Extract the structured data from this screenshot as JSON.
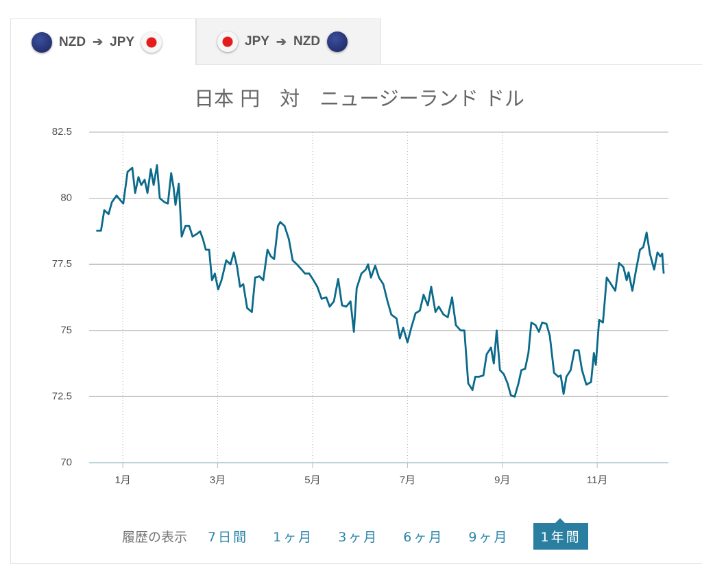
{
  "tabs": [
    {
      "from": "NZD",
      "to": "JPY"
    },
    {
      "from": "JPY",
      "to": "NZD"
    }
  ],
  "chart_data": {
    "type": "line",
    "title": "日本 円　対　ニュージーランド ドル",
    "x": [
      0.44,
      0.54,
      0.61,
      0.7,
      0.77,
      0.87,
      0.96,
      1.01,
      1.1,
      1.2,
      1.26,
      1.33,
      1.39,
      1.46,
      1.52,
      1.59,
      1.65,
      1.72,
      1.78,
      1.88,
      1.95,
      2.02,
      2.07,
      2.11,
      2.18,
      2.24,
      2.32,
      2.4,
      2.47,
      2.56,
      2.63,
      2.69,
      2.75,
      2.82,
      2.88,
      2.94,
      3.01,
      3.08,
      3.18,
      3.27,
      3.34,
      3.41,
      3.47,
      3.54,
      3.62,
      3.72,
      3.79,
      3.88,
      3.96,
      4.05,
      4.12,
      4.19,
      4.27,
      4.32,
      4.41,
      4.5,
      4.58,
      4.67,
      4.77,
      4.84,
      4.93,
      5.02,
      5.1,
      5.19,
      5.29,
      5.36,
      5.45,
      5.54,
      5.62,
      5.71,
      5.8,
      5.87,
      5.93,
      6.03,
      6.12,
      6.17,
      6.23,
      6.32,
      6.4,
      6.49,
      6.58,
      6.66,
      6.77,
      6.84,
      6.91,
      7.0,
      7.08,
      7.17,
      7.26,
      7.34,
      7.43,
      7.5,
      7.59,
      7.66,
      7.76,
      7.85,
      7.94,
      8.02,
      8.12,
      8.2,
      8.28,
      8.37,
      8.43,
      8.51,
      8.6,
      8.67,
      8.76,
      8.82,
      8.88,
      8.95,
      9.03,
      9.11,
      9.18,
      9.26,
      9.34,
      9.4,
      9.48,
      9.55,
      9.61,
      9.7,
      9.77,
      9.84,
      9.93,
      10.0,
      10.09,
      10.18,
      10.23,
      10.29,
      10.35,
      10.44,
      10.52,
      10.61,
      10.68,
      10.77,
      10.87,
      10.93,
      10.97,
      11.04,
      11.12,
      11.2,
      11.29,
      11.38,
      11.46,
      11.55,
      11.62,
      11.66,
      11.74,
      11.82,
      11.9,
      11.97,
      12.04,
      12.11,
      12.2,
      12.27,
      12.33,
      12.37,
      12.4
    ],
    "series": [
      {
        "name": "JPY/NZD",
        "color": "#0b6a8a",
        "values": [
          78.77,
          78.77,
          79.55,
          79.4,
          79.85,
          80.1,
          79.9,
          79.8,
          81.0,
          81.15,
          80.2,
          80.8,
          80.5,
          80.7,
          80.2,
          81.1,
          80.5,
          81.25,
          80.0,
          79.85,
          79.8,
          80.95,
          80.4,
          79.75,
          80.55,
          78.55,
          78.95,
          78.95,
          78.55,
          78.65,
          78.75,
          78.45,
          78.05,
          78.05,
          76.9,
          77.15,
          76.55,
          76.9,
          77.65,
          77.5,
          77.95,
          77.4,
          76.65,
          76.75,
          75.85,
          75.7,
          77.0,
          77.05,
          76.9,
          78.05,
          77.8,
          77.7,
          78.95,
          79.1,
          78.95,
          78.45,
          77.65,
          77.5,
          77.3,
          77.15,
          77.15,
          76.9,
          76.65,
          76.2,
          76.25,
          75.9,
          76.1,
          76.95,
          75.95,
          75.9,
          76.1,
          74.95,
          76.6,
          77.15,
          77.3,
          77.5,
          77.0,
          77.45,
          77.0,
          76.75,
          76.1,
          75.6,
          75.45,
          74.7,
          75.1,
          74.55,
          75.1,
          75.65,
          75.75,
          76.35,
          75.95,
          76.65,
          75.7,
          75.9,
          75.6,
          75.5,
          76.25,
          75.2,
          75.0,
          75.0,
          73.0,
          72.75,
          73.25,
          73.25,
          73.3,
          74.1,
          74.35,
          73.75,
          75.0,
          73.5,
          73.35,
          73.0,
          72.55,
          72.5,
          73.0,
          73.5,
          73.55,
          74.15,
          75.3,
          75.2,
          74.95,
          75.3,
          75.25,
          74.8,
          73.4,
          73.25,
          73.3,
          72.6,
          73.25,
          73.5,
          74.25,
          74.25,
          73.5,
          72.95,
          73.05,
          74.15,
          73.7,
          75.4,
          75.3,
          77.0,
          76.75,
          76.5,
          77.55,
          77.4,
          76.9,
          77.2,
          76.5,
          77.3,
          78.05,
          78.15,
          78.7,
          77.9,
          77.3,
          77.95,
          77.8,
          77.9,
          77.15
        ]
      }
    ],
    "xlim": [
      0.29,
      12.5
    ],
    "xticks": [
      {
        "value": 1,
        "label": "1月"
      },
      {
        "value": 3,
        "label": "3月"
      },
      {
        "value": 5,
        "label": "5月"
      },
      {
        "value": 7,
        "label": "7月"
      },
      {
        "value": 9,
        "label": "9月"
      },
      {
        "value": 11,
        "label": "11月"
      }
    ],
    "ylim": [
      70,
      82.5
    ],
    "yticks": [
      70,
      72.5,
      75,
      77.5,
      80,
      82.5
    ],
    "grid": true
  },
  "history": {
    "label": "履歴の表示",
    "options": [
      "7日間",
      "1ヶ月",
      "3ヶ月",
      "6ヶ月",
      "9ヶ月",
      "1年間"
    ],
    "active": 5
  }
}
